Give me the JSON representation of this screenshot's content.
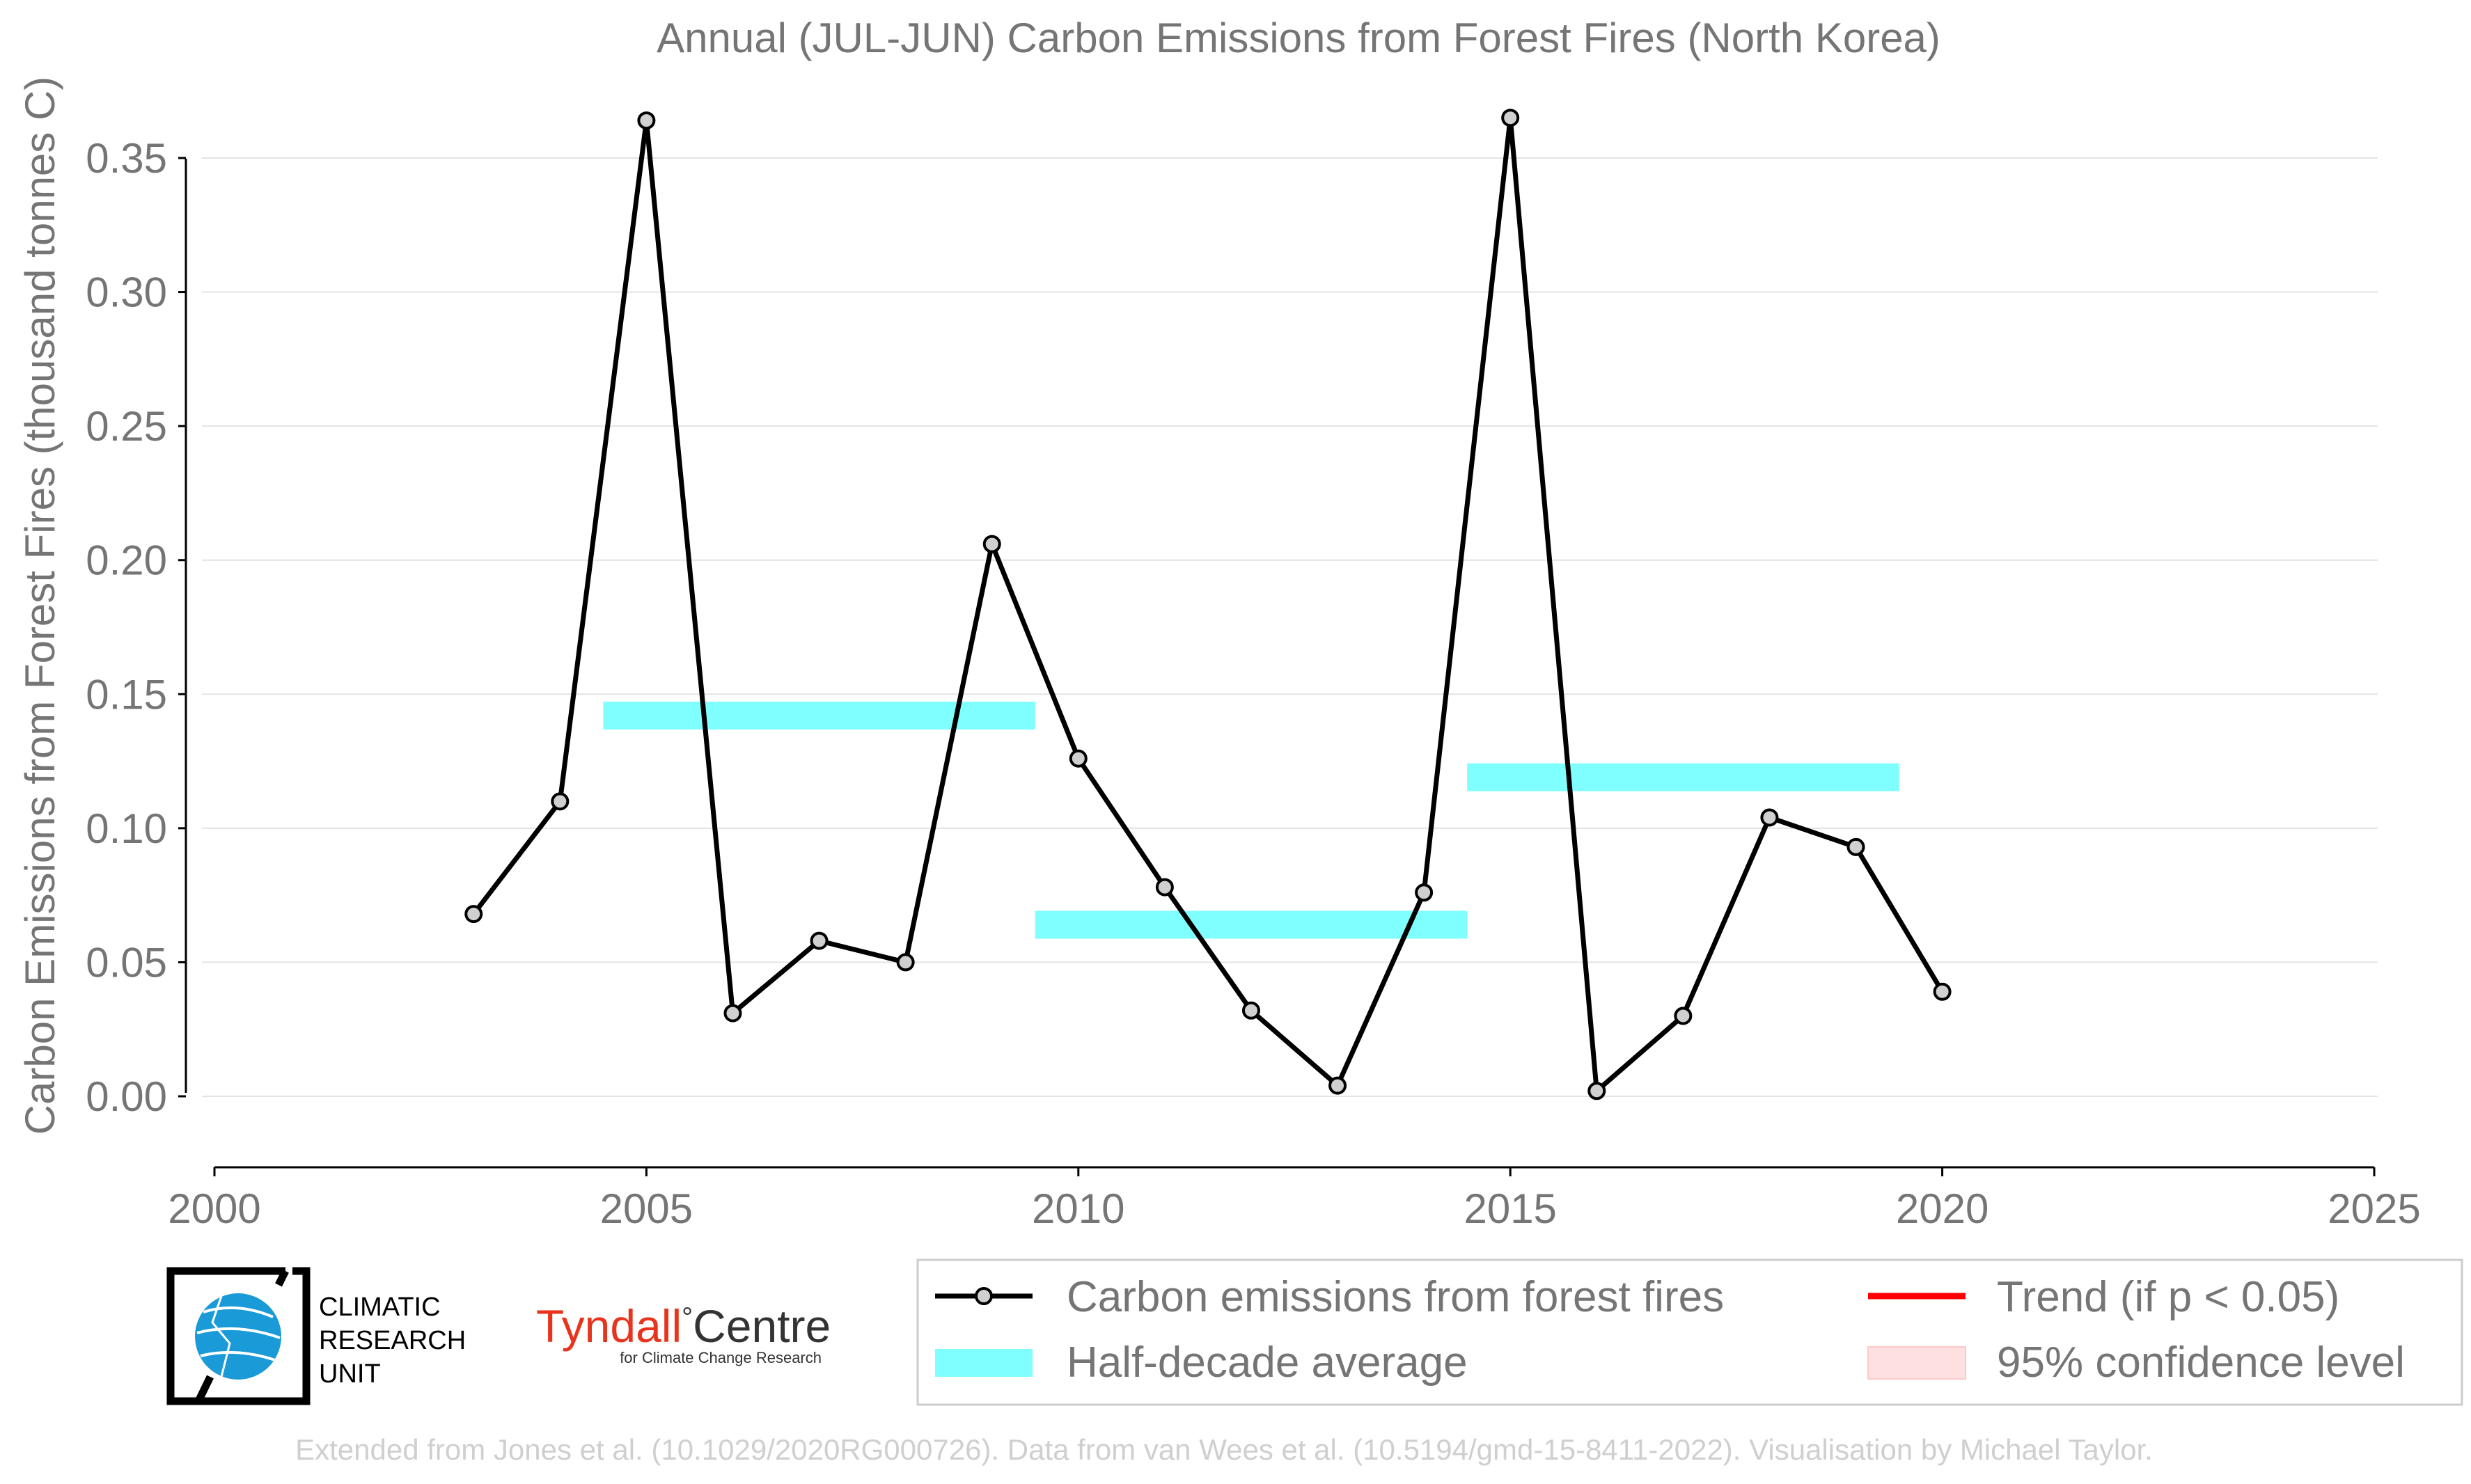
{
  "chart_data": {
    "type": "line",
    "title": "Annual (JUL-JUN) Carbon Emissions from Forest Fires (North Korea)",
    "xlabel": "",
    "ylabel": "Carbon Emissions from Forest Fires (thousand tonnes C)",
    "xlim": [
      2000,
      2025
    ],
    "ylim": [
      -0.028,
      0.37
    ],
    "x_ticks": [
      2000,
      2005,
      2010,
      2015,
      2020,
      2025
    ],
    "y_ticks": [
      0.0,
      0.05,
      0.1,
      0.15,
      0.2,
      0.25,
      0.3,
      0.35
    ],
    "y_tick_labels": [
      "0.00",
      "0.05",
      "0.10",
      "0.15",
      "0.20",
      "0.25",
      "0.30",
      "0.35"
    ],
    "grid": "horizontal",
    "series": [
      {
        "name": "Carbon emissions from forest fires",
        "color": "#000000",
        "marker_fill": "#d0d0d0",
        "x": [
          2003,
          2004,
          2005,
          2006,
          2007,
          2008,
          2009,
          2010,
          2011,
          2012,
          2013,
          2014,
          2015,
          2016,
          2017,
          2018,
          2019,
          2020
        ],
        "values": [
          0.068,
          0.11,
          0.364,
          0.031,
          0.058,
          0.05,
          0.206,
          0.126,
          0.078,
          0.032,
          0.004,
          0.076,
          0.365,
          0.002,
          0.03,
          0.104,
          0.093,
          0.039
        ]
      }
    ],
    "half_decade_averages": [
      {
        "x_start": 2004.5,
        "x_end": 2009.5,
        "value": 0.142
      },
      {
        "x_start": 2009.5,
        "x_end": 2014.5,
        "value": 0.064
      },
      {
        "x_start": 2014.5,
        "x_end": 2019.5,
        "value": 0.119
      }
    ],
    "legend": {
      "placement": "bottom-right",
      "entries": [
        {
          "label": "Carbon emissions from forest fires",
          "kind": "line-marker",
          "color": "#000000"
        },
        {
          "label": "Trend (if p < 0.05)",
          "kind": "line",
          "color": "#ff0000"
        },
        {
          "label": "Half-decade average",
          "kind": "band",
          "color": "#7fffff"
        },
        {
          "label": "95% confidence level",
          "kind": "band",
          "color": "#ffe0e0"
        }
      ]
    }
  },
  "logos": {
    "cru_lines": [
      "CLIMATIC",
      "RESEARCH",
      "UNIT"
    ],
    "tyndall_name": "Tyndall",
    "tyndall_degree": "°",
    "tyndall_centre": "Centre",
    "tyndall_sub": "for Climate Change Research"
  },
  "credit": "Extended from Jones et al. (10.1029/2020RG000726). Data from van Wees et al. (10.5194/gmd-15-8411-2022). Visualisation by Michael Taylor."
}
